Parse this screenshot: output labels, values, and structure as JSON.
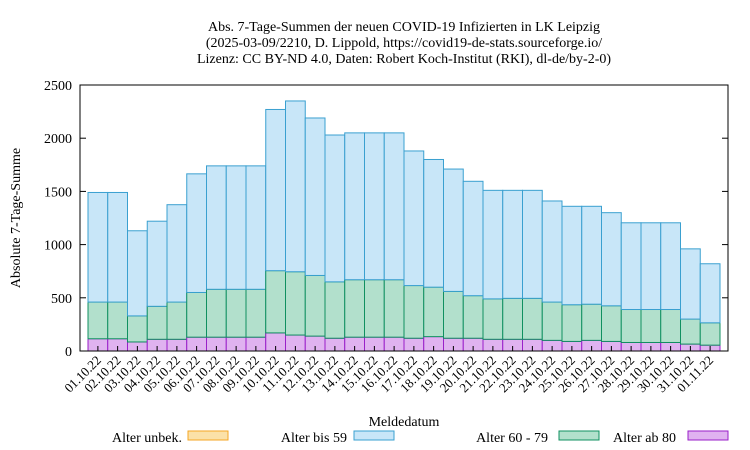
{
  "chart_data": {
    "type": "bar",
    "stacked": true,
    "title_lines": [
      "Abs. 7-Tage-Summen der neuen COVID-19 Infizierten in LK Leipzig",
      "(2025-03-09/2210, D. Lippold, https://covid19-de-stats.sourceforge.io/",
      "Lizenz: CC BY-ND 4.0, Daten: Robert Koch-Institut (RKI), dl-de/by-2-0)"
    ],
    "xlabel": "Meldedatum",
    "ylabel": "Absolute 7-Tage-Summe",
    "ylim": [
      0,
      2500
    ],
    "yticks": [
      0,
      500,
      1000,
      1500,
      2000,
      2500
    ],
    "grid": false,
    "legend_position": "bottom",
    "categories": [
      "01.10.22",
      "02.10.22",
      "03.10.22",
      "04.10.22",
      "05.10.22",
      "06.10.22",
      "07.10.22",
      "08.10.22",
      "09.10.22",
      "10.10.22",
      "11.10.22",
      "12.10.22",
      "13.10.22",
      "14.10.22",
      "15.10.22",
      "16.10.22",
      "17.10.22",
      "18.10.22",
      "19.10.22",
      "20.10.22",
      "21.10.22",
      "22.10.22",
      "23.10.22",
      "24.10.22",
      "25.10.22",
      "26.10.22",
      "27.10.22",
      "28.10.22",
      "29.10.22",
      "30.10.22",
      "31.10.22",
      "01.11.22"
    ],
    "series": [
      {
        "name": "Alter unbek.",
        "color": "#f5a623",
        "fill": "#fbe1a8",
        "values": [
          0,
          0,
          0,
          0,
          0,
          0,
          0,
          0,
          0,
          0,
          0,
          0,
          0,
          0,
          0,
          0,
          0,
          0,
          0,
          0,
          0,
          0,
          0,
          0,
          0,
          0,
          0,
          0,
          0,
          0,
          0,
          0
        ]
      },
      {
        "name": "Alter ab 80",
        "color": "#9a1fc9",
        "fill": "#e0b2f0",
        "values": [
          115,
          115,
          85,
          110,
          110,
          130,
          130,
          130,
          130,
          170,
          150,
          140,
          120,
          130,
          130,
          130,
          120,
          135,
          120,
          120,
          110,
          110,
          110,
          100,
          90,
          100,
          90,
          80,
          80,
          80,
          65,
          55
        ]
      },
      {
        "name": "Alter 60 - 79",
        "color": "#109060",
        "fill": "#b2e0cc",
        "values": [
          345,
          345,
          245,
          310,
          350,
          420,
          450,
          450,
          450,
          585,
          595,
          570,
          530,
          540,
          540,
          540,
          495,
          465,
          440,
          400,
          380,
          385,
          385,
          360,
          345,
          340,
          335,
          310,
          310,
          310,
          235,
          210
        ]
      },
      {
        "name": "Alter bis 59",
        "color": "#3aa0d0",
        "fill": "#c8e6f8",
        "values": [
          1030,
          1030,
          800,
          800,
          915,
          1115,
          1160,
          1160,
          1160,
          1515,
          1605,
          1480,
          1380,
          1380,
          1380,
          1380,
          1265,
          1200,
          1150,
          1075,
          1020,
          1015,
          1015,
          950,
          925,
          920,
          875,
          815,
          815,
          815,
          660,
          555
        ]
      }
    ],
    "legend_order": [
      "Alter unbek.",
      "Alter bis 59",
      "Alter 60 - 79",
      "Alter ab 80"
    ]
  }
}
